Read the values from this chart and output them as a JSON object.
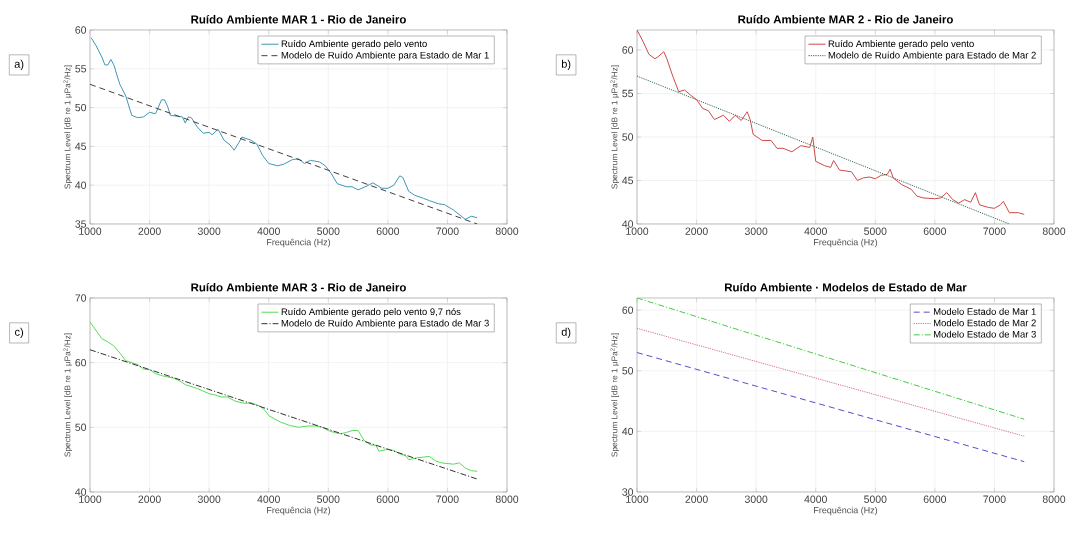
{
  "chart_data": [
    {
      "type": "line",
      "title": "Ruído Ambiente MAR 1 - Rio de Janeiro",
      "xlabel": "Frequência (Hz)",
      "ylabel": "Spectrum Level [dB re 1 μPa$^{2}$/Hz]",
      "annotations": [
        "a)"
      ],
      "xlim": [
        1000,
        8000
      ],
      "ylim": [
        35,
        60
      ],
      "xticks": [
        1000,
        2000,
        3000,
        4000,
        5000,
        6000,
        7000,
        8000
      ],
      "yticks": [
        35,
        40,
        45,
        50,
        55,
        60
      ],
      "grid": true,
      "legend": "top right",
      "series": [
        {
          "name": "Ruído Ambiente gerado pelo vento",
          "color": "#3f96b4",
          "line_style": "solid",
          "x": [
            1020,
            1100,
            1200,
            1250,
            1300,
            1350,
            1400,
            1500,
            1600,
            1700,
            1800,
            1900,
            2000,
            2100,
            2200,
            2250,
            2300,
            2350,
            2450,
            2550,
            2600,
            2650,
            2700,
            2800,
            2900,
            3000,
            3050,
            3150,
            3250,
            3350,
            3420,
            3500,
            3550,
            3700,
            3800,
            3900,
            4000,
            4150,
            4250,
            4400,
            4500,
            4600,
            4700,
            4850,
            4950,
            5050,
            5150,
            5300,
            5400,
            5500,
            5650,
            5750,
            5900,
            6000,
            6100,
            6200,
            6250,
            6350,
            6450,
            6600,
            6700,
            6850,
            6950,
            7100,
            7200,
            7300,
            7400,
            7500
          ],
          "values": [
            59,
            58,
            56.5,
            55.5,
            55.5,
            56.2,
            55.5,
            53,
            51.5,
            49,
            48.7,
            48.8,
            49.4,
            49.2,
            51,
            51,
            50.2,
            49,
            48.9,
            48.8,
            48,
            48.8,
            48.7,
            47.5,
            46.7,
            46.8,
            46.5,
            47.2,
            45.8,
            45.2,
            44.5,
            45.5,
            46.2,
            45.8,
            45.3,
            43.8,
            42.8,
            42.5,
            42.7,
            43.3,
            43.4,
            42.8,
            43.2,
            43,
            42.5,
            41.5,
            40.2,
            39.8,
            39.8,
            39.4,
            39.9,
            40.3,
            39.6,
            39.6,
            40,
            41.2,
            41,
            39.2,
            38.7,
            38.3,
            38,
            37.6,
            37.5,
            36.8,
            36.2,
            35.6,
            36,
            35.8
          ]
        },
        {
          "name": "Modelo de Ruído Ambiente para Estado de Mar 1",
          "color": "#404040",
          "line_style": "dashed",
          "x": [
            1000,
            7500
          ],
          "values": [
            53,
            35
          ]
        }
      ]
    },
    {
      "type": "line",
      "title": "Ruído Ambiente MAR 2 - Rio de Janeiro",
      "xlabel": "Frequência (Hz)",
      "ylabel": "Spectrum Level [dB re 1 μPa$^{2}$/Hz]",
      "annotations": [
        "b)"
      ],
      "xlim": [
        1000,
        8000
      ],
      "ylim": [
        40,
        62.3
      ],
      "xticks": [
        1000,
        2000,
        3000,
        4000,
        5000,
        6000,
        7000,
        8000
      ],
      "yticks": [
        40,
        45,
        50,
        55,
        60
      ],
      "grid": true,
      "legend": "top right",
      "series": [
        {
          "name": "Ruído Ambiente gerado pelo vento",
          "color": "#d04848",
          "line_style": "solid",
          "x": [
            1000,
            1100,
            1200,
            1300,
            1350,
            1450,
            1500,
            1600,
            1700,
            1800,
            1900,
            2000,
            2100,
            2200,
            2300,
            2450,
            2550,
            2650,
            2750,
            2850,
            2900,
            2950,
            3100,
            3250,
            3350,
            3450,
            3600,
            3750,
            3900,
            3950,
            4000,
            4150,
            4250,
            4300,
            4400,
            4600,
            4700,
            4800,
            4900,
            5000,
            5100,
            5200,
            5250,
            5300,
            5450,
            5600,
            5700,
            5800,
            6000,
            6100,
            6200,
            6300,
            6400,
            6500,
            6600,
            6680,
            6750,
            6900,
            7000,
            7100,
            7150,
            7250,
            7400,
            7500
          ],
          "values": [
            62.3,
            61,
            59.5,
            59,
            59.2,
            59.8,
            59,
            57,
            55.2,
            55.4,
            54.8,
            54.3,
            53.3,
            53,
            52,
            52.5,
            51.8,
            52.5,
            51.9,
            52.9,
            52,
            50.3,
            49.6,
            49.6,
            48.7,
            48.7,
            48.3,
            49,
            48.8,
            50,
            47.2,
            46.7,
            46.5,
            47.3,
            46.2,
            46,
            45,
            45.3,
            45.4,
            45.2,
            45.6,
            45.7,
            46.3,
            45.3,
            44.5,
            44,
            43.2,
            43,
            42.9,
            43,
            43.6,
            42.8,
            42.4,
            42.8,
            42.5,
            43.6,
            42.2,
            41.9,
            41.8,
            42.2,
            42.6,
            41.3,
            41.3,
            41.1
          ]
        },
        {
          "name": "Modelo de Ruído Ambiente para Estado de Mar 2",
          "color": "#336655",
          "line_style": "dotted",
          "x": [
            1000,
            7250
          ],
          "values": [
            57,
            40
          ]
        }
      ]
    },
    {
      "type": "line",
      "title": "Ruído Ambiente MAR 3 - Rio de Janeiro",
      "xlabel": "Frequência (Hz)",
      "ylabel": "Spectrum Level [dB re 1 μPa$^{2}$/Hz]",
      "annotations": [
        "c)"
      ],
      "xlim": [
        1000,
        8000
      ],
      "ylim": [
        40,
        70
      ],
      "xticks": [
        1000,
        2000,
        3000,
        4000,
        5000,
        6000,
        7000,
        8000
      ],
      "yticks": [
        40,
        50,
        60,
        70
      ],
      "grid": true,
      "legend": "top right",
      "series": [
        {
          "name": "Ruído Ambiente gerado pelo vento 9,7 nós",
          "color": "#55dd55",
          "line_style": "solid",
          "x": [
            1000,
            1100,
            1200,
            1300,
            1400,
            1500,
            1600,
            1700,
            1800,
            1900,
            2000,
            2100,
            2200,
            2300,
            2400,
            2500,
            2600,
            2800,
            3000,
            3100,
            3200,
            3300,
            3450,
            3600,
            3700,
            3850,
            3950,
            4000,
            4100,
            4200,
            4350,
            4500,
            4650,
            4800,
            4900,
            5000,
            5100,
            5200,
            5300,
            5400,
            5500,
            5600,
            5700,
            5800,
            5850,
            6000,
            6100,
            6200,
            6300,
            6350,
            6500,
            6600,
            6700,
            6800,
            6900,
            7100,
            7200,
            7300,
            7400,
            7500
          ],
          "values": [
            66.3,
            65,
            63.7,
            63.2,
            62.6,
            61.5,
            60.3,
            60,
            59.7,
            59,
            58.9,
            58.3,
            58,
            57.8,
            57.6,
            57.2,
            56.6,
            56,
            55.2,
            55,
            54.7,
            54.7,
            54,
            53.7,
            53.8,
            53.3,
            52.5,
            51.8,
            51.3,
            50.8,
            50.3,
            50,
            50.2,
            50.2,
            50,
            49.5,
            49.2,
            49,
            49.2,
            49.5,
            49.5,
            48,
            47.3,
            47.2,
            46.3,
            46.6,
            46.4,
            45.9,
            45.6,
            45,
            45.3,
            45.4,
            45.5,
            44.8,
            44.5,
            44.3,
            44.5,
            43.7,
            43.3,
            43.2
          ]
        },
        {
          "name": "Modelo de Ruído Ambiente para Estado de Mar 3",
          "color": "#333333",
          "line_style": "dashdot",
          "x": [
            1000,
            7500
          ],
          "values": [
            62,
            42
          ]
        }
      ]
    },
    {
      "type": "line",
      "title": "Ruído Ambiente · Modelos de Estado de Mar",
      "xlabel": "Frequência (Hz)",
      "ylabel": "Spectrum Level [dB re 1 μPa$^{2}$/Hz]",
      "annotations": [
        "d)"
      ],
      "xlim": [
        1000,
        8000
      ],
      "ylim": [
        30,
        62
      ],
      "xticks": [
        1000,
        2000,
        3000,
        4000,
        5000,
        6000,
        7000,
        8000
      ],
      "yticks": [
        30,
        40,
        50,
        60
      ],
      "grid": true,
      "legend": "top right",
      "series": [
        {
          "name": "Modelo Estado de Mar 1",
          "color": "#5050c8",
          "line_style": "dashed",
          "x": [
            1000,
            7500
          ],
          "values": [
            53,
            35
          ]
        },
        {
          "name": "Modelo Estado de Mar 2",
          "color": "#d07080",
          "line_style": "dotted",
          "x": [
            1000,
            7500
          ],
          "values": [
            57,
            39.2
          ]
        },
        {
          "name": "Modelo Estado de Mar 3",
          "color": "#44cc44",
          "line_style": "dashdot",
          "x": [
            1000,
            7500
          ],
          "values": [
            62,
            42
          ]
        }
      ]
    }
  ]
}
